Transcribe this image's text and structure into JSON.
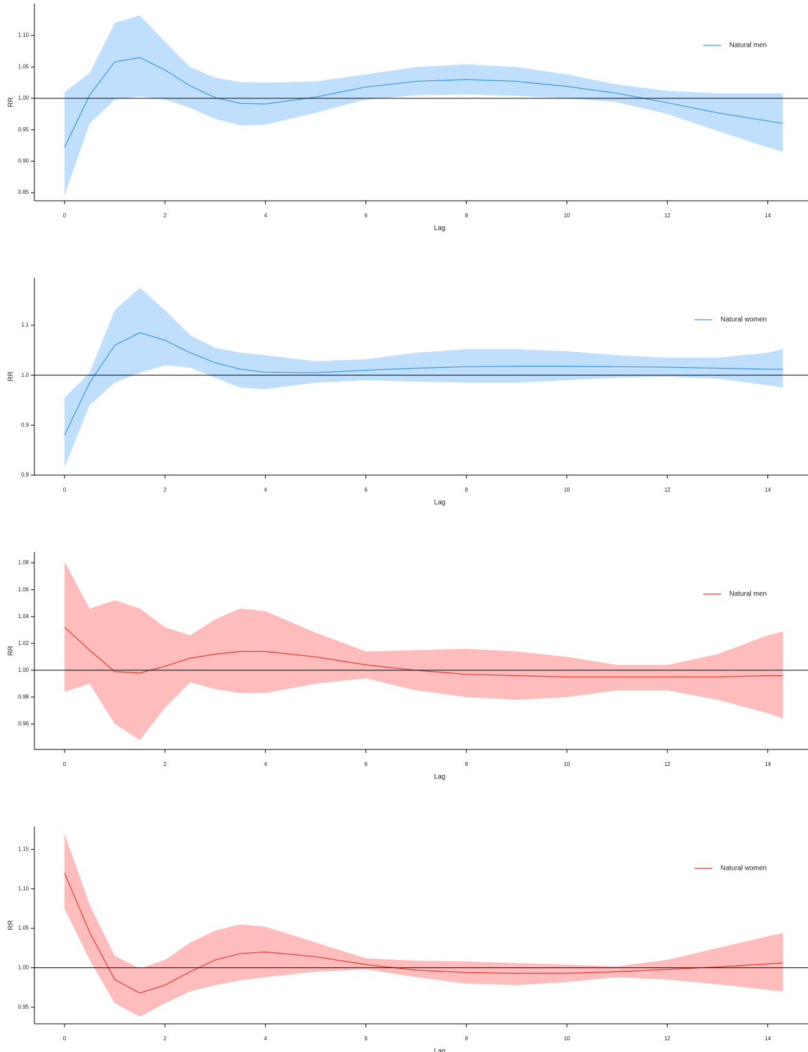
{
  "chart_data": [
    {
      "type": "line",
      "xlabel": "Lag",
      "ylabel": "RR",
      "legend": "upper right",
      "hline": 1,
      "x": [
        0,
        0.5,
        1,
        1.5,
        2,
        2.5,
        3,
        3.5,
        4,
        5,
        6,
        7,
        8,
        9,
        10,
        11,
        12,
        13,
        14,
        14.3
      ],
      "series": [
        {
          "name": "Natural men",
          "color": "#3a93e0",
          "band_color": "#bfdffc",
          "values": [
            0.922,
            1.005,
            1.058,
            1.065,
            1.045,
            1.02,
            1.001,
            0.992,
            0.991,
            1.002,
            1.018,
            1.027,
            1.03,
            1.027,
            1.019,
            1.008,
            0.993,
            0.977,
            0.964,
            0.96
          ],
          "upper": [
            1.01,
            1.04,
            1.12,
            1.132,
            1.09,
            1.05,
            1.033,
            1.026,
            1.025,
            1.027,
            1.038,
            1.05,
            1.054,
            1.05,
            1.038,
            1.022,
            1.012,
            1.008,
            1.008,
            1.008
          ],
          "lower": [
            0.845,
            0.96,
            0.998,
            1.003,
            0.998,
            0.985,
            0.967,
            0.957,
            0.958,
            0.977,
            0.998,
            1.005,
            1.006,
            1.004,
            1.0,
            0.994,
            0.975,
            0.948,
            0.922,
            0.915
          ]
        }
      ],
      "xlim": [
        -0.6,
        14.8
      ],
      "xticks": [
        0,
        2,
        4,
        6,
        8,
        10,
        12,
        14
      ],
      "ylim": [
        0.837,
        1.151
      ],
      "yticks": [
        0.85,
        {
          "value": 0.9,
          "label": "0.90"
        },
        0.95,
        {
          "value": 1,
          "label": "1.00"
        },
        1.05,
        {
          "value": 1.1,
          "label": "1.10"
        }
      ]
    },
    {
      "type": "line",
      "xlabel": "Lag",
      "ylabel": "RR",
      "legend": "upper right",
      "hline": 1,
      "x": [
        0,
        0.5,
        1,
        1.5,
        2,
        2.5,
        3,
        3.5,
        4,
        5,
        6,
        7,
        8,
        9,
        10,
        11,
        12,
        13,
        14,
        14.3
      ],
      "series": [
        {
          "name": "Natural women",
          "color": "#3a93e0",
          "band_color": "#bfdffc",
          "values": [
            0.88,
            0.985,
            1.06,
            1.085,
            1.07,
            1.045,
            1.025,
            1.012,
            1.006,
            1.005,
            1.01,
            1.014,
            1.017,
            1.018,
            1.018,
            1.017,
            1.016,
            1.014,
            1.012,
            1.012
          ],
          "upper": [
            0.955,
            1.005,
            1.13,
            1.175,
            1.13,
            1.08,
            1.055,
            1.045,
            1.04,
            1.028,
            1.032,
            1.045,
            1.052,
            1.052,
            1.048,
            1.04,
            1.035,
            1.035,
            1.045,
            1.052
          ],
          "lower": [
            0.815,
            0.94,
            0.985,
            1.005,
            1.02,
            1.015,
            0.995,
            0.975,
            0.972,
            0.985,
            0.99,
            0.987,
            0.985,
            0.985,
            0.99,
            0.995,
            0.997,
            0.993,
            0.98,
            0.975
          ]
        }
      ],
      "xlim": [
        -0.6,
        14.8
      ],
      "xticks": [
        0,
        2,
        4,
        6,
        8,
        10,
        12,
        14
      ],
      "ylim": [
        0.8,
        1.195
      ],
      "yticks": [
        0.8,
        0.9,
        {
          "value": 1,
          "label": "1.0"
        },
        1.1
      ]
    },
    {
      "type": "line",
      "xlabel": "Lag",
      "ylabel": "RR",
      "legend": "upper right",
      "hline": 1,
      "x": [
        0,
        0.5,
        1,
        1.5,
        2,
        2.5,
        3,
        3.5,
        4,
        5,
        6,
        7,
        8,
        9,
        10,
        11,
        12,
        13,
        14,
        14.3
      ],
      "series": [
        {
          "name": "Natural men",
          "color": "#e8372c",
          "band_color": "#ffbcbc",
          "values": [
            1.032,
            1.015,
            0.999,
            0.998,
            1.003,
            1.009,
            1.012,
            1.014,
            1.014,
            1.01,
            1.004,
            1.0,
            0.997,
            0.996,
            0.995,
            0.995,
            0.995,
            0.995,
            0.996,
            0.996
          ],
          "upper": [
            1.081,
            1.046,
            1.052,
            1.046,
            1.032,
            1.026,
            1.038,
            1.046,
            1.044,
            1.028,
            1.014,
            1.015,
            1.016,
            1.014,
            1.01,
            1.004,
            1.004,
            1.012,
            1.026,
            1.029
          ],
          "lower": [
            0.984,
            0.99,
            0.96,
            0.948,
            0.972,
            0.991,
            0.986,
            0.983,
            0.983,
            0.99,
            0.994,
            0.985,
            0.98,
            0.978,
            0.98,
            0.985,
            0.985,
            0.978,
            0.968,
            0.964
          ]
        }
      ],
      "xlim": [
        -0.6,
        14.8
      ],
      "xticks": [
        0,
        2,
        4,
        6,
        8,
        10,
        12,
        14
      ],
      "ylim": [
        0.941,
        1.088
      ],
      "yticks": [
        0.96,
        0.98,
        {
          "value": 1,
          "label": "1.00"
        },
        1.02,
        1.04,
        1.06,
        1.08
      ]
    },
    {
      "type": "line",
      "xlabel": "Lag",
      "ylabel": "RR",
      "legend": "upper right",
      "hline": 1,
      "x": [
        0,
        0.5,
        1,
        1.5,
        2,
        2.5,
        3,
        3.5,
        4,
        5,
        6,
        7,
        8,
        9,
        10,
        11,
        12,
        13,
        14,
        14.3
      ],
      "series": [
        {
          "name": "Natural women",
          "color": "#e8372c",
          "band_color": "#ffbcbc",
          "values": [
            1.12,
            1.045,
            0.985,
            0.968,
            0.978,
            0.995,
            1.01,
            1.018,
            1.02,
            1.014,
            1.004,
            0.997,
            0.994,
            0.993,
            0.993,
            0.995,
            0.998,
            1.001,
            1.005,
            1.006
          ],
          "upper": [
            1.17,
            1.08,
            1.015,
            0.999,
            1.01,
            1.032,
            1.047,
            1.055,
            1.052,
            1.032,
            1.012,
            1.009,
            1.008,
            1.006,
            1.004,
            1.002,
            1.01,
            1.025,
            1.04,
            1.044
          ],
          "lower": [
            1.075,
            1.01,
            0.955,
            0.938,
            0.955,
            0.97,
            0.978,
            0.984,
            0.988,
            0.995,
            0.998,
            0.988,
            0.98,
            0.978,
            0.982,
            0.988,
            0.985,
            0.979,
            0.972,
            0.97
          ]
        }
      ],
      "xlim": [
        -0.6,
        14.8
      ],
      "xticks": [
        0,
        2,
        4,
        6,
        8,
        10,
        12,
        14
      ],
      "ylim": [
        0.929,
        1.179
      ],
      "yticks": [
        0.95,
        {
          "value": 1,
          "label": "1.00"
        },
        1.05,
        {
          "value": 1.1,
          "label": "1.10"
        },
        1.15
      ]
    }
  ]
}
